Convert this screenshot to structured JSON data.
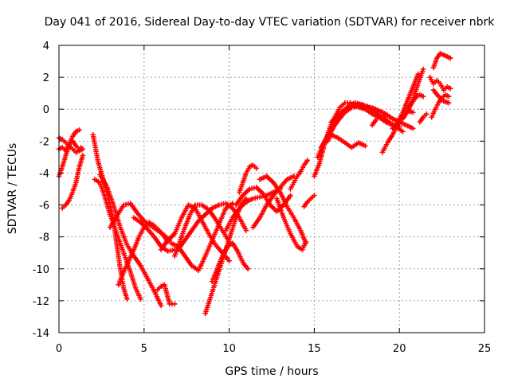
{
  "chart_data": {
    "type": "scatter",
    "title": "Day 041 of 2016, Sidereal Day-to-day VTEC variation (SDTVAR) for receiver nbrk",
    "xlabel": "GPS time / hours",
    "ylabel": "SDTVAR / TECUs",
    "xlim": [
      0,
      25
    ],
    "ylim": [
      -14,
      4
    ],
    "x_ticks": [
      "0",
      "5",
      "10",
      "15",
      "20",
      "25"
    ],
    "y_ticks": [
      "4",
      "2",
      "0",
      "-2",
      "-4",
      "-6",
      "-8",
      "-10",
      "-12",
      "-14"
    ],
    "grid": true,
    "marker": "plus",
    "color": "#ff0000",
    "series": [
      {
        "x": [
          0.0,
          0.2,
          0.4,
          0.6,
          0.8,
          1.0,
          1.2,
          1.3
        ],
        "y": [
          -2.5,
          -2.4,
          -2.6,
          -2.2,
          -2.0,
          -2.3,
          -2.5,
          -2.4
        ]
      },
      {
        "x": [
          0.0,
          0.2,
          0.4,
          0.6,
          0.8,
          1.0,
          1.2
        ],
        "y": [
          -4.2,
          -3.6,
          -2.9,
          -2.2,
          -1.7,
          -1.4,
          -1.3
        ]
      },
      {
        "x": [
          0.0,
          0.2,
          0.4,
          0.6,
          0.8,
          1.0,
          1.2,
          1.4
        ],
        "y": [
          -1.8,
          -1.9,
          -2.1,
          -2.3,
          -2.5,
          -2.7,
          -2.6,
          -2.5
        ]
      },
      {
        "x": [
          0.2,
          0.4,
          0.6,
          0.8,
          1.0,
          1.2,
          1.4
        ],
        "y": [
          -6.2,
          -6.0,
          -5.7,
          -5.2,
          -4.6,
          -3.6,
          -2.9
        ]
      },
      {
        "x": [
          2.0,
          2.3,
          2.6,
          2.9,
          3.2,
          3.4,
          3.6,
          3.8,
          4.0
        ],
        "y": [
          -1.6,
          -3.3,
          -4.4,
          -5.5,
          -7.0,
          -8.5,
          -10.0,
          -11.2,
          -11.9
        ]
      },
      {
        "x": [
          2.1,
          2.4,
          2.7,
          3.0,
          3.3,
          3.6,
          3.9,
          4.2,
          4.5,
          4.8
        ],
        "y": [
          -4.4,
          -4.6,
          -5.5,
          -6.6,
          -7.5,
          -8.4,
          -9.3,
          -10.2,
          -11.2,
          -11.9
        ]
      },
      {
        "x": [
          2.4,
          2.8,
          3.2,
          3.6,
          4.0,
          4.4,
          4.8,
          5.2,
          5.6,
          6.0
        ],
        "y": [
          -4.1,
          -4.8,
          -6.0,
          -7.4,
          -8.5,
          -9.2,
          -9.8,
          -10.6,
          -11.4,
          -12.3
        ]
      },
      {
        "x": [
          3.0,
          3.4,
          3.8,
          4.2,
          4.6,
          5.0,
          5.4,
          5.8,
          6.2,
          6.5
        ],
        "y": [
          -7.4,
          -6.7,
          -6.0,
          -5.9,
          -6.5,
          -7.0,
          -7.3,
          -7.6,
          -7.9,
          -8.2
        ]
      },
      {
        "x": [
          3.5,
          3.8,
          4.1,
          4.4,
          4.7,
          5.0,
          5.3,
          5.6,
          5.9,
          6.2,
          6.4
        ],
        "y": [
          -11.0,
          -10.2,
          -9.5,
          -8.8,
          -8.0,
          -7.4,
          -7.1,
          -7.3,
          -7.6,
          -8.0,
          -8.3
        ]
      },
      {
        "x": [
          4.4,
          4.8,
          5.2,
          5.6,
          6.0,
          6.4,
          6.8
        ],
        "y": [
          -6.8,
          -7.1,
          -7.5,
          -8.0,
          -8.6,
          -8.9,
          -8.8
        ]
      },
      {
        "x": [
          5.8,
          6.0,
          6.2,
          6.5,
          6.8
        ],
        "y": [
          -11.3,
          -11.1,
          -11.0,
          -12.2,
          -12.2
        ]
      },
      {
        "x": [
          6.0,
          6.4,
          6.8,
          7.2,
          7.6,
          8.0,
          8.4,
          8.8,
          9.2,
          9.6,
          10.0
        ],
        "y": [
          -8.8,
          -8.2,
          -7.8,
          -6.8,
          -6.0,
          -6.2,
          -7.0,
          -7.8,
          -8.5,
          -9.0,
          -9.5
        ]
      },
      {
        "x": [
          6.6,
          7.0,
          7.4,
          7.8,
          8.2,
          8.6,
          9.0,
          9.4,
          9.8,
          10.2
        ],
        "y": [
          -8.4,
          -8.6,
          -9.2,
          -9.8,
          -10.1,
          -9.2,
          -8.2,
          -7.2,
          -6.2,
          -5.9
        ]
      },
      {
        "x": [
          6.8,
          7.1,
          7.4,
          7.7,
          8.0,
          8.4,
          8.8,
          9.2,
          9.6,
          10.0
        ],
        "y": [
          -9.2,
          -8.3,
          -7.4,
          -6.6,
          -6.0,
          -6.0,
          -6.3,
          -6.9,
          -7.6,
          -8.3
        ]
      },
      {
        "x": [
          7.0,
          7.4,
          7.8,
          8.2,
          8.6,
          9.0,
          9.4,
          9.8,
          10.2,
          10.6,
          11.0
        ],
        "y": [
          -8.8,
          -8.2,
          -7.6,
          -7.0,
          -6.6,
          -6.2,
          -6.0,
          -5.9,
          -6.2,
          -6.8,
          -7.6
        ]
      },
      {
        "x": [
          8.6,
          8.9,
          9.2,
          9.5,
          9.8,
          10.1,
          10.4,
          10.7,
          11.0
        ],
        "y": [
          -12.8,
          -11.8,
          -10.8,
          -9.8,
          -8.8,
          -7.8,
          -6.8,
          -6.0,
          -5.6
        ]
      },
      {
        "x": [
          9.0,
          9.3,
          9.6,
          9.9,
          10.2,
          10.5,
          10.8,
          11.1
        ],
        "y": [
          -10.8,
          -10.0,
          -9.2,
          -8.6,
          -8.4,
          -8.9,
          -9.6,
          -10.0
        ]
      },
      {
        "x": [
          9.8,
          10.2,
          10.6,
          11.0,
          11.4,
          11.8,
          12.2,
          12.6,
          13.0
        ],
        "y": [
          -7.6,
          -6.8,
          -6.2,
          -5.8,
          -5.6,
          -5.5,
          -5.4,
          -5.2,
          -5.0
        ]
      },
      {
        "x": [
          10.4,
          10.8,
          11.2,
          11.6,
          12.0,
          12.4,
          12.8,
          13.2,
          13.6
        ],
        "y": [
          -6.0,
          -5.4,
          -5.0,
          -4.9,
          -5.3,
          -6.0,
          -6.4,
          -6.0,
          -5.4
        ]
      },
      {
        "x": [
          10.6,
          10.8,
          11.0,
          11.2,
          11.4,
          11.6
        ],
        "y": [
          -5.2,
          -4.6,
          -4.0,
          -3.6,
          -3.5,
          -3.7
        ]
      },
      {
        "x": [
          11.4,
          11.8,
          12.2,
          12.6,
          13.0,
          13.4,
          13.8
        ],
        "y": [
          -7.4,
          -6.8,
          -6.0,
          -5.4,
          -4.9,
          -4.4,
          -4.2
        ]
      },
      {
        "x": [
          11.8,
          12.2,
          12.6,
          13.0,
          13.4,
          13.8,
          14.2,
          14.5
        ],
        "y": [
          -4.4,
          -4.2,
          -4.6,
          -5.2,
          -6.1,
          -6.8,
          -7.6,
          -8.4
        ]
      },
      {
        "x": [
          12.8,
          13.2,
          13.6,
          14.0,
          14.3,
          14.5
        ],
        "y": [
          -5.6,
          -6.8,
          -7.8,
          -8.6,
          -8.8,
          -8.3
        ]
      },
      {
        "x": [
          13.6,
          13.8,
          14.0,
          14.2,
          14.4,
          14.6
        ],
        "y": [
          -5.0,
          -4.6,
          -4.2,
          -3.9,
          -3.5,
          -3.2
        ]
      },
      {
        "x": [
          14.4,
          14.6,
          14.8,
          15.0
        ],
        "y": [
          -6.1,
          -5.8,
          -5.6,
          -5.4
        ]
      },
      {
        "x": [
          15.0,
          15.3,
          15.6,
          15.9,
          16.2,
          16.5,
          16.8,
          17.1,
          17.4,
          17.7,
          18.0
        ],
        "y": [
          -4.2,
          -3.4,
          -2.2,
          -1.2,
          -0.5,
          0.1,
          0.4,
          0.4,
          0.2,
          0.1,
          0.0
        ]
      },
      {
        "x": [
          15.2,
          15.6,
          16.0,
          16.4,
          16.8,
          17.2,
          17.6,
          18.0,
          18.4,
          18.8,
          19.2,
          19.6,
          20.0
        ],
        "y": [
          -3.0,
          -2.0,
          -1.3,
          -0.7,
          -0.2,
          0.1,
          0.2,
          0.0,
          -0.3,
          -0.5,
          -0.8,
          -1.0,
          -1.1
        ]
      },
      {
        "x": [
          15.4,
          15.8,
          16.2,
          16.6,
          17.0,
          17.4,
          17.8,
          18.2,
          18.6,
          19.0,
          19.4,
          19.8,
          20.2
        ],
        "y": [
          -2.4,
          -1.8,
          -1.0,
          -0.3,
          0.2,
          0.4,
          0.3,
          0.1,
          -0.2,
          -0.5,
          -0.8,
          -1.1,
          -1.4
        ]
      },
      {
        "x": [
          15.8,
          16.0,
          16.4,
          16.8,
          17.2,
          17.6,
          18.0
        ],
        "y": [
          -2.0,
          -1.6,
          -1.8,
          -2.1,
          -2.4,
          -2.1,
          -2.3
        ]
      },
      {
        "x": [
          16.0,
          16.4,
          16.8,
          17.2,
          17.6,
          18.0,
          18.4,
          18.8,
          19.2,
          19.6,
          20.0,
          20.4,
          20.8
        ],
        "y": [
          -0.8,
          -0.4,
          0.0,
          0.2,
          0.3,
          0.2,
          0.1,
          -0.1,
          -0.3,
          -0.6,
          -0.8,
          -1.0,
          -1.2
        ]
      },
      {
        "x": [
          18.4,
          18.6,
          18.8,
          19.0,
          19.2
        ],
        "y": [
          -1.0,
          -0.7,
          -0.5,
          -0.4,
          -0.6
        ]
      },
      {
        "x": [
          19.0,
          19.3,
          19.6,
          19.9,
          20.2,
          20.5,
          20.8
        ],
        "y": [
          -2.7,
          -2.1,
          -1.6,
          -1.0,
          -0.4,
          -0.1,
          -0.2
        ]
      },
      {
        "x": [
          19.6,
          19.9,
          20.2,
          20.5,
          20.8,
          21.1
        ],
        "y": [
          -1.2,
          -0.8,
          -0.2,
          0.6,
          1.4,
          2.2
        ]
      },
      {
        "x": [
          20.2,
          20.5,
          20.8,
          21.1,
          21.4
        ],
        "y": [
          -0.6,
          -0.1,
          0.6,
          1.6,
          2.5
        ]
      },
      {
        "x": [
          20.4,
          20.6,
          20.8,
          21.0,
          21.2,
          21.4
        ],
        "y": [
          -0.2,
          0.2,
          0.5,
          0.8,
          0.9,
          0.8
        ]
      },
      {
        "x": [
          21.2,
          21.4,
          21.6
        ],
        "y": [
          -0.8,
          -0.5,
          -0.3
        ]
      },
      {
        "x": [
          21.8,
          22.0,
          22.2,
          22.4,
          22.6,
          22.8,
          23.0
        ],
        "y": [
          2.0,
          1.6,
          1.8,
          1.6,
          1.2,
          1.4,
          1.3
        ]
      },
      {
        "x": [
          22.0,
          22.2,
          22.4,
          22.6,
          22.8,
          23.0
        ],
        "y": [
          2.6,
          3.2,
          3.5,
          3.4,
          3.3,
          3.2
        ]
      },
      {
        "x": [
          21.9,
          22.1,
          22.3,
          22.5,
          22.7,
          22.9
        ],
        "y": [
          -0.5,
          0.0,
          0.4,
          0.7,
          0.9,
          0.8
        ]
      },
      {
        "x": [
          22.0,
          22.3,
          22.6,
          22.9
        ],
        "y": [
          1.2,
          0.8,
          0.5,
          0.4
        ]
      }
    ]
  }
}
